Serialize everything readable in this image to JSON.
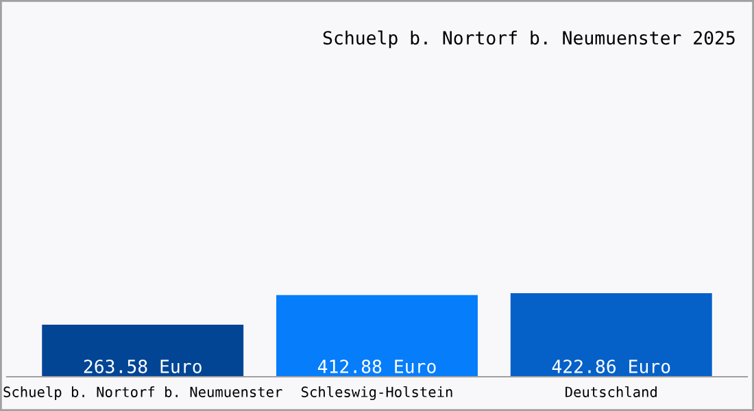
{
  "chart_data": {
    "type": "bar",
    "title": "Schuelp b. Nortorf b. Neumuenster 2025",
    "categories": [
      "Schuelp b. Nortorf b. Neumuenster",
      "Schleswig-Holstein",
      "Deutschland"
    ],
    "values": [
      263.58,
      412.88,
      422.86
    ],
    "colors": [
      "#024595",
      "#067dfb",
      "#0561c8"
    ],
    "value_labels": [
      "263.58 Euro",
      "412.88 Euro",
      "422.86 Euro"
    ]
  }
}
